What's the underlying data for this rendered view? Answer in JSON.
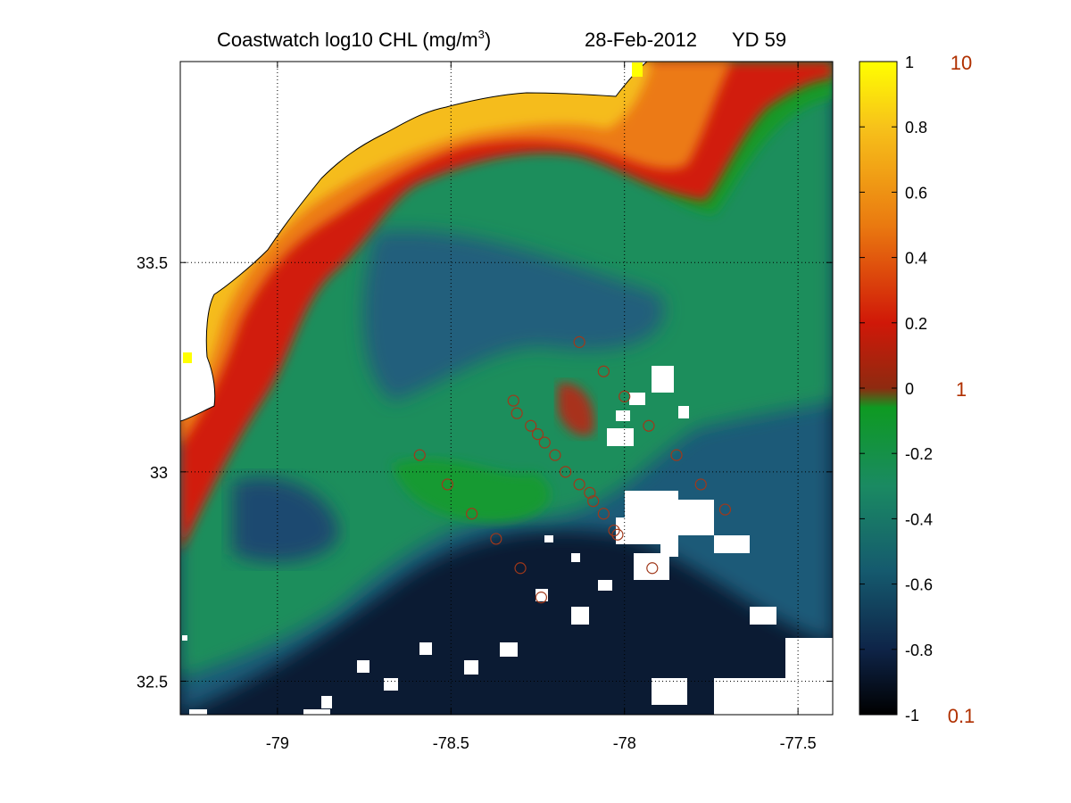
{
  "title": {
    "main": "Coastwatch  log10  CHL (mg/m",
    "superscript": "3",
    "close": ")",
    "date": "28-Feb-2012",
    "yearday": "YD 59"
  },
  "map": {
    "x_ticks": [
      {
        "value": -79,
        "label": "-79"
      },
      {
        "value": -78.5,
        "label": "-78.5"
      },
      {
        "value": -78,
        "label": "-78"
      },
      {
        "value": -77.5,
        "label": "-77.5"
      }
    ],
    "y_ticks": [
      {
        "value": 33.5,
        "label": "33.5"
      },
      {
        "value": 33,
        "label": "33"
      },
      {
        "value": 32.5,
        "label": "32.5"
      }
    ],
    "lon_range": [
      -79.28,
      -77.4
    ],
    "lat_range": [
      32.42,
      33.98
    ],
    "grid": "dotted",
    "stations": [
      [
        -78.13,
        33.31
      ],
      [
        -78.06,
        33.24
      ],
      [
        -78.0,
        33.18
      ],
      [
        -78.32,
        33.17
      ],
      [
        -78.31,
        33.14
      ],
      [
        -78.27,
        33.11
      ],
      [
        -78.25,
        33.09
      ],
      [
        -78.23,
        33.07
      ],
      [
        -78.2,
        33.04
      ],
      [
        -78.17,
        33.0
      ],
      [
        -78.13,
        32.97
      ],
      [
        -78.1,
        32.95
      ],
      [
        -78.09,
        32.93
      ],
      [
        -78.06,
        32.9
      ],
      [
        -78.03,
        32.86
      ],
      [
        -78.02,
        32.85
      ],
      [
        -78.59,
        33.04
      ],
      [
        -78.51,
        32.97
      ],
      [
        -78.44,
        32.9
      ],
      [
        -78.37,
        32.84
      ],
      [
        -78.3,
        32.77
      ],
      [
        -78.24,
        32.7
      ],
      [
        -77.85,
        33.04
      ],
      [
        -77.78,
        32.97
      ],
      [
        -77.71,
        32.91
      ],
      [
        -77.92,
        32.77
      ],
      [
        -77.93,
        33.11
      ]
    ]
  },
  "colorbar": {
    "log_min": -1,
    "log_max": 1,
    "colors": [
      "#000000",
      "#0e2448",
      "#155a6e",
      "#1a8a62",
      "#0e9a22",
      "#8e2a10",
      "#d01808",
      "#ea7a10",
      "#f7c21a",
      "#ffff00"
    ],
    "left_labels": [
      {
        "value": 1,
        "label": "1"
      },
      {
        "value": 0.8,
        "label": "0.8"
      },
      {
        "value": 0.6,
        "label": "0.6"
      },
      {
        "value": 0.4,
        "label": "0.4"
      },
      {
        "value": 0.2,
        "label": "0.2"
      },
      {
        "value": 0,
        "label": "0"
      },
      {
        "value": -0.2,
        "label": "-0.2"
      },
      {
        "value": -0.4,
        "label": "-0.4"
      },
      {
        "value": -0.6,
        "label": "-0.6"
      },
      {
        "value": -0.8,
        "label": "-0.8"
      },
      {
        "value": -1,
        "label": "-1"
      }
    ],
    "right_labels": [
      {
        "value": 1,
        "label": "10"
      },
      {
        "value": 0,
        "label": "1"
      },
      {
        "value": -1,
        "label": "0.1"
      }
    ],
    "right_label_color": "#b03000"
  }
}
